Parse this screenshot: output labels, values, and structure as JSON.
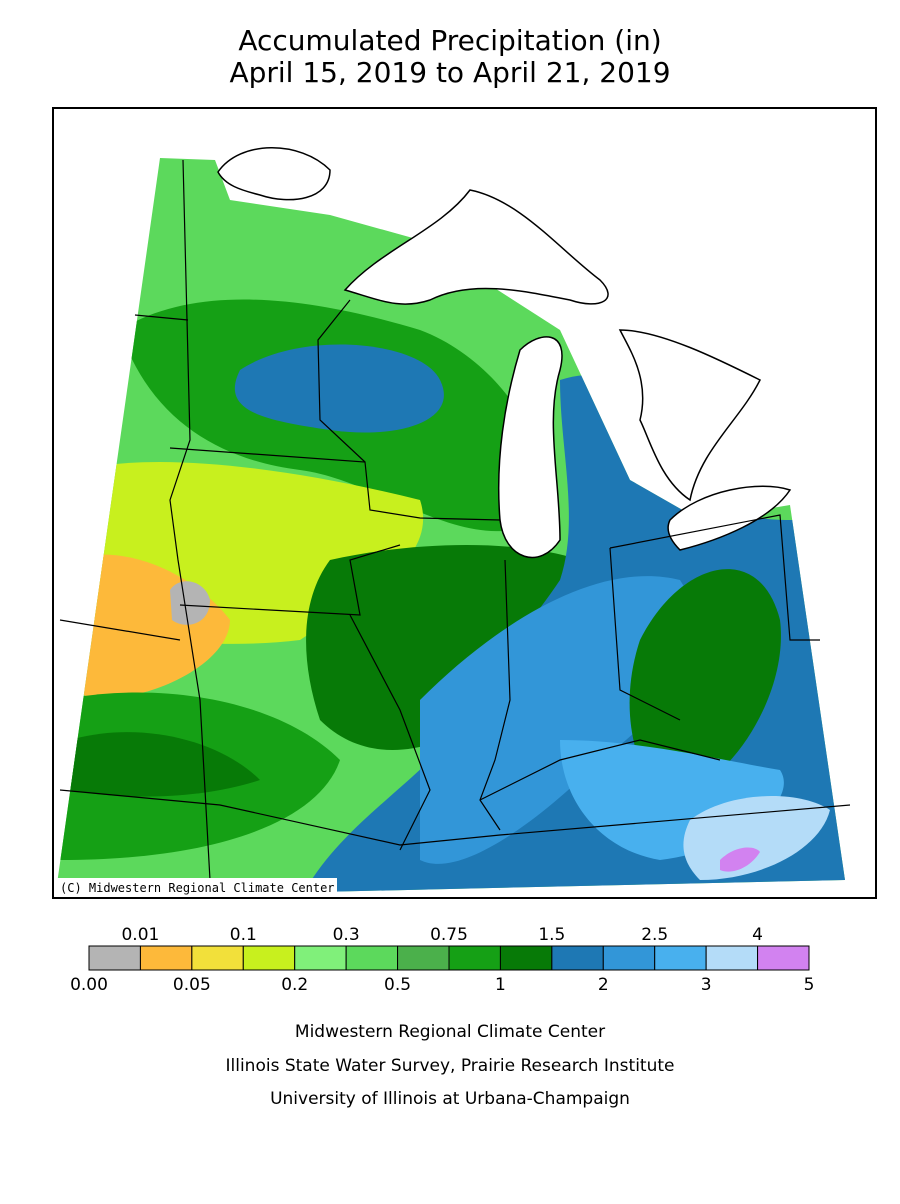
{
  "header": {
    "title_lines": [
      "Accumulated Precipitation (in)",
      "April 15, 2019 to April 21, 2019"
    ]
  },
  "map": {
    "copyright": "(C) Midwestern Regional Climate Center"
  },
  "legend": {
    "breaks": [
      "0.00",
      "0.01",
      "0.05",
      "0.1",
      "0.2",
      "0.3",
      "0.5",
      "0.75",
      "1",
      "1.5",
      "2",
      "2.5",
      "3",
      "4",
      "5"
    ],
    "colors": [
      "#b4b4b4",
      "#fdb93a",
      "#f2e03a",
      "#c8f01e",
      "#80f07a",
      "#5cd95c",
      "#4bb04b",
      "#15a015",
      "#077a07",
      "#1e78b4",
      "#3296d8",
      "#48b0ee",
      "#b4dcf8",
      "#d282f0"
    ]
  },
  "footer": {
    "lines": [
      "Midwestern Regional Climate Center",
      "Illinois State Water Survey, Prairie Research Institute",
      "University of Illinois at Urbana-Champaign"
    ]
  }
}
